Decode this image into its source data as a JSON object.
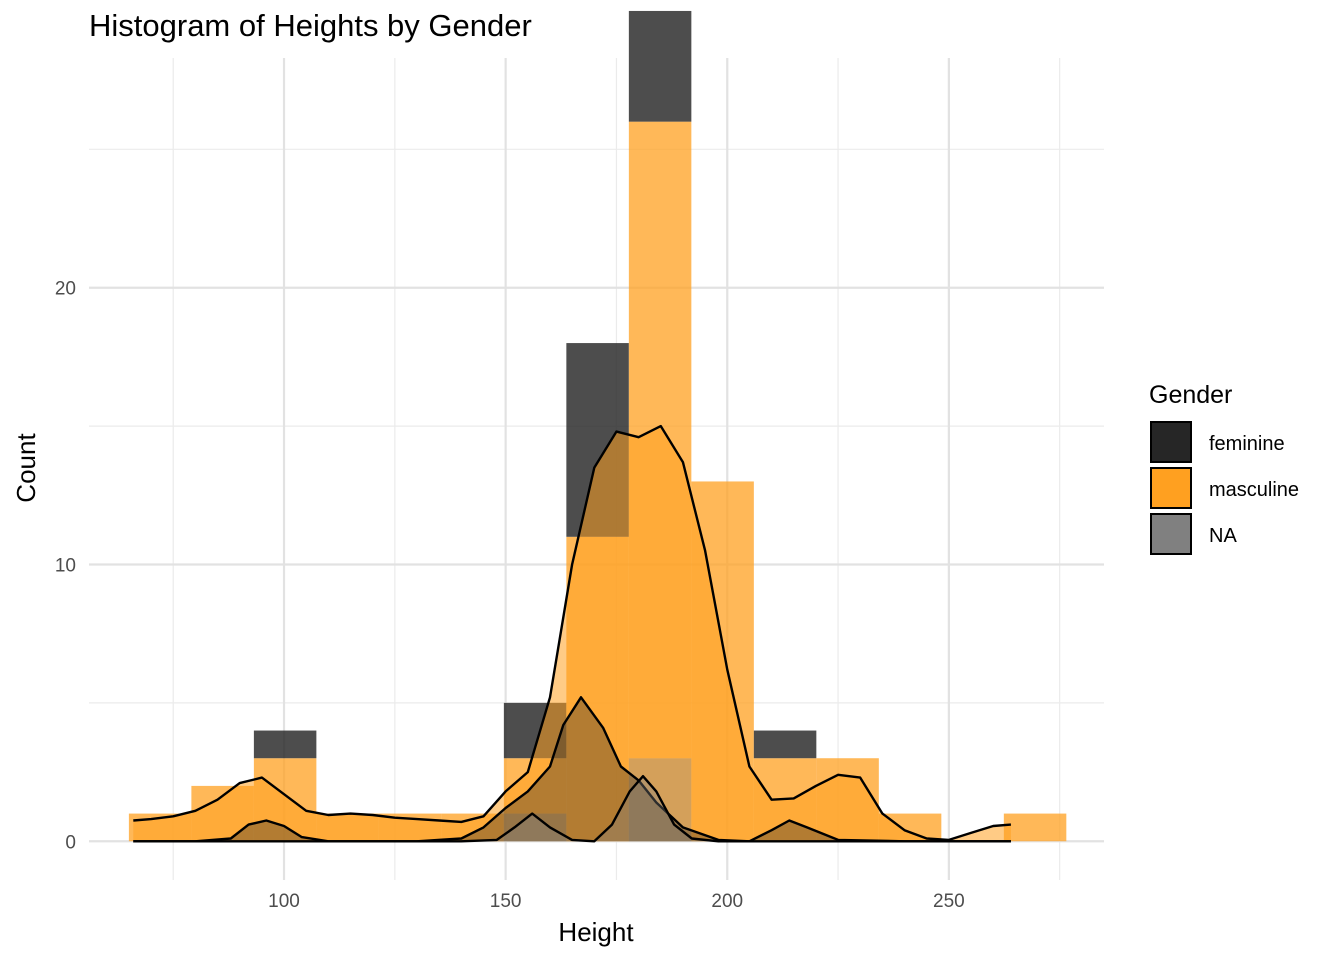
{
  "chart_data": {
    "type": "histogram",
    "title": "Histogram of Heights by Gender",
    "xlabel": "Height",
    "ylabel": "Count",
    "xlim": [
      56,
      285
    ],
    "ylim": [
      -1.4,
      28.3
    ],
    "x_ticks": [
      100,
      150,
      200,
      250
    ],
    "y_ticks": [
      0,
      10,
      20
    ],
    "grid": true,
    "stacked": true,
    "bin_width": 14.1,
    "bin_starts": [
      65.0,
      79.1,
      93.2,
      107.3,
      121.4,
      135.5,
      149.6,
      163.7,
      177.8,
      191.9,
      206.0,
      220.1,
      234.2,
      248.3,
      262.4
    ],
    "legend": {
      "title": "Gender",
      "position": "right",
      "entries": [
        {
          "label": "feminine",
          "color": "#262626"
        },
        {
          "label": "masculine",
          "color": "#FFA020"
        },
        {
          "label": "NA",
          "color": "#808080"
        }
      ]
    },
    "series": [
      {
        "name": "feminine",
        "color": "#262626",
        "opacity": 0.82,
        "counts": [
          0,
          0,
          1,
          0,
          0,
          0,
          2,
          7,
          4,
          0,
          1,
          0,
          0,
          0,
          0
        ]
      },
      {
        "name": "masculine",
        "color": "#FFA020",
        "opacity": 0.75,
        "counts": [
          1,
          2,
          3,
          1,
          1,
          1,
          2,
          11,
          23,
          13,
          3,
          3,
          1,
          0,
          1
        ]
      },
      {
        "name": "NA",
        "color": "#808080",
        "opacity": 0.75,
        "counts": [
          0,
          0,
          0,
          0,
          0,
          0,
          1,
          0,
          3,
          0,
          0,
          0,
          0,
          0,
          0
        ]
      }
    ],
    "density_curves": [
      {
        "name": "masculine",
        "fill": "#FFA020",
        "fill_opacity": 0.55,
        "x": [
          66,
          70,
          75,
          80,
          85,
          90,
          95,
          100,
          105,
          110,
          115,
          120,
          125,
          130,
          135,
          140,
          145,
          150,
          155,
          160,
          165,
          170,
          175,
          180,
          185,
          190,
          195,
          200,
          205,
          210,
          215,
          220,
          225,
          230,
          235,
          240,
          245,
          250,
          255,
          260,
          264
        ],
        "y": [
          0.75,
          0.8,
          0.9,
          1.1,
          1.5,
          2.1,
          2.3,
          1.7,
          1.1,
          0.95,
          1.0,
          0.95,
          0.85,
          0.8,
          0.75,
          0.7,
          0.9,
          1.8,
          2.5,
          5.2,
          10.0,
          13.5,
          14.8,
          14.6,
          15.0,
          13.7,
          10.5,
          6.2,
          2.7,
          1.5,
          1.55,
          2.0,
          2.4,
          2.3,
          1.0,
          0.4,
          0.1,
          0.05,
          0.3,
          0.55,
          0.6
        ]
      },
      {
        "name": "feminine",
        "fill": "#262626",
        "fill_opacity": 0.35,
        "x": [
          66,
          80,
          88,
          92,
          96,
          100,
          104,
          110,
          130,
          140,
          145,
          150,
          155,
          160,
          163,
          167,
          172,
          176,
          180,
          184,
          190,
          198,
          205,
          210,
          214,
          218,
          225,
          240,
          264
        ],
        "y": [
          0,
          0,
          0.1,
          0.6,
          0.75,
          0.55,
          0.15,
          0,
          0,
          0.1,
          0.5,
          1.2,
          1.8,
          2.7,
          4.2,
          5.2,
          4.1,
          2.7,
          2.2,
          1.4,
          0.5,
          0.05,
          0.0,
          0.4,
          0.75,
          0.5,
          0.05,
          0,
          0
        ]
      },
      {
        "name": "NA",
        "fill": "#808080",
        "fill_opacity": 0.35,
        "x": [
          66,
          140,
          148,
          152,
          156,
          160,
          165,
          170,
          174,
          178,
          181,
          184,
          188,
          192,
          198,
          264
        ],
        "y": [
          0,
          0,
          0.05,
          0.5,
          1.0,
          0.5,
          0.05,
          0.0,
          0.6,
          1.8,
          2.35,
          1.8,
          0.6,
          0.1,
          0,
          0
        ]
      }
    ]
  }
}
